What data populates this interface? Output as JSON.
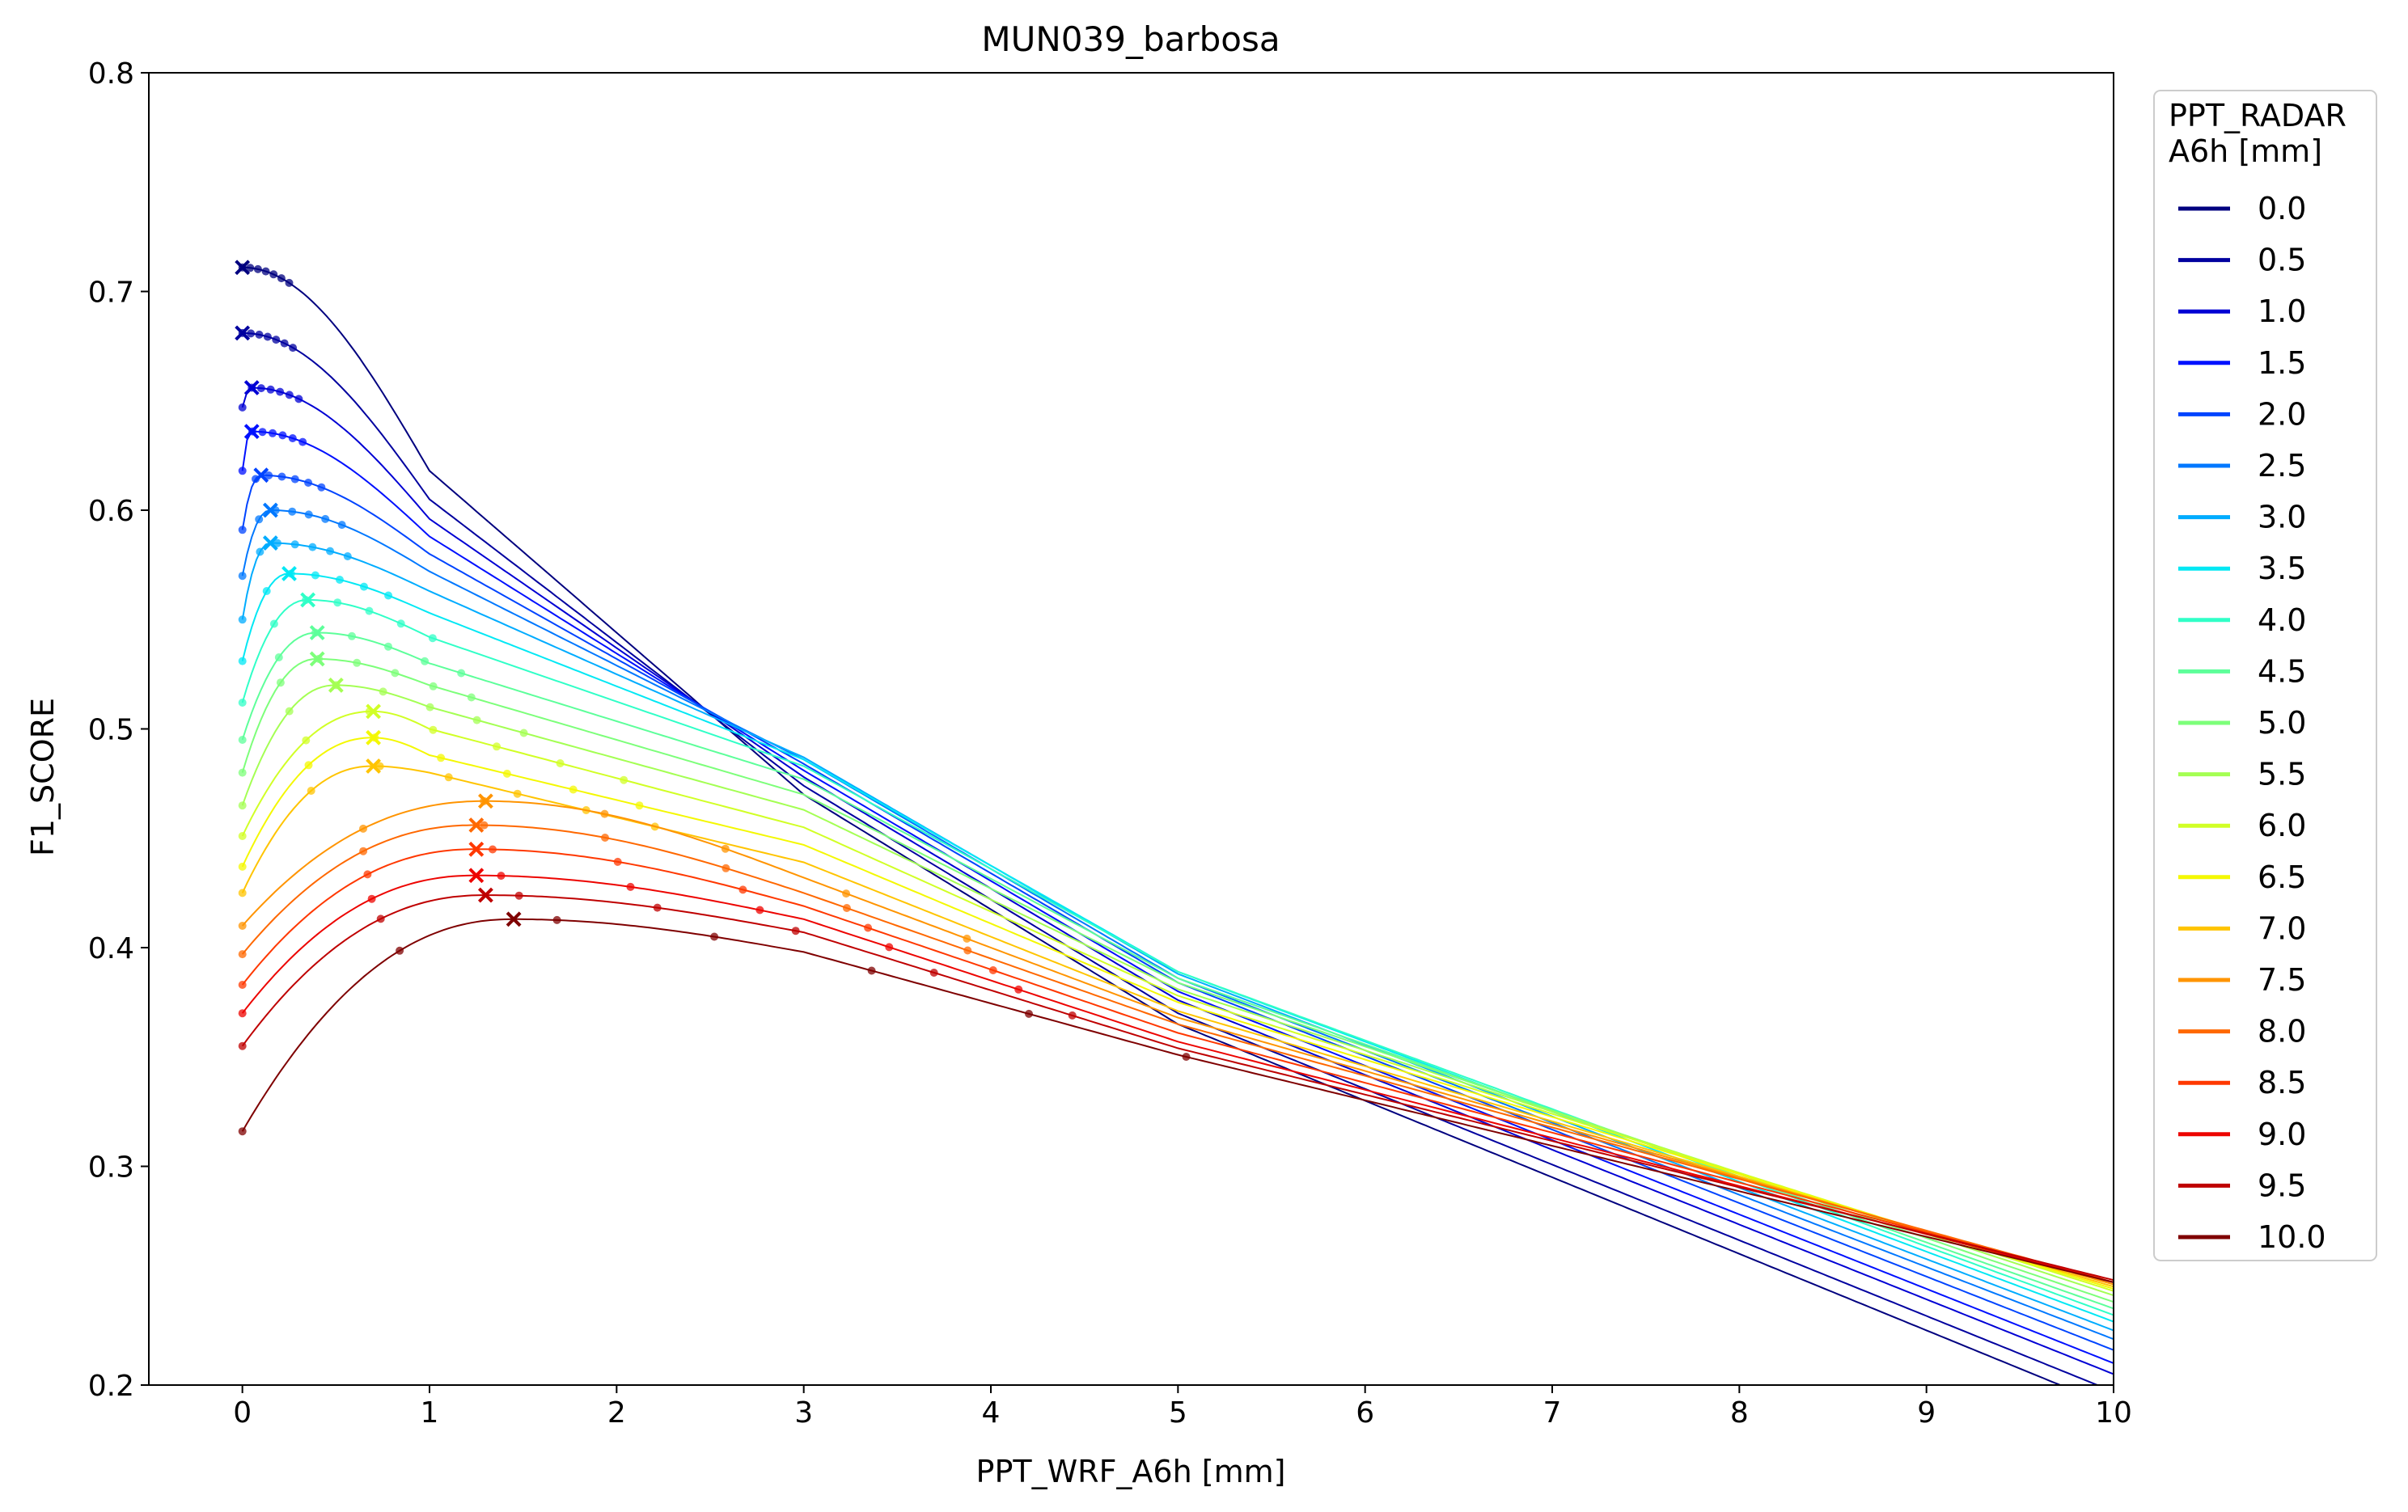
{
  "chart_data": {
    "type": "line",
    "title": "MUN039_barbosa",
    "xlabel": "PPT_WRF_A6h [mm]",
    "ylabel": "F1_SCORE",
    "xlim": [
      -0.5,
      10
    ],
    "ylim": [
      0.2,
      0.8
    ],
    "xticks": [
      "0",
      "1",
      "2",
      "3",
      "4",
      "5",
      "6",
      "7",
      "8",
      "9",
      "10"
    ],
    "yticks": [
      "0.2",
      "0.3",
      "0.4",
      "0.5",
      "0.6",
      "0.7",
      "0.8"
    ],
    "grid": false,
    "legend": {
      "title_line1": "PPT_RADAR",
      "title_line2": "A6h [mm]",
      "placement": "outside-right"
    },
    "series": [
      {
        "name": "0.0",
        "color": "#00007f",
        "peak_x": 0.0,
        "peak_y": 0.711,
        "start_y": 0.711,
        "y_at_1": 0.618,
        "y_at_3": 0.47,
        "y_at_5": 0.365,
        "y_at_10": 0.19
      },
      {
        "name": "0.5",
        "color": "#00009f",
        "peak_x": 0.0,
        "peak_y": 0.681,
        "start_y": 0.681,
        "y_at_1": 0.605,
        "y_at_3": 0.474,
        "y_at_5": 0.37,
        "y_at_10": 0.197
      },
      {
        "name": "1.0",
        "color": "#0000d4",
        "peak_x": 0.05,
        "peak_y": 0.656,
        "start_y": 0.647,
        "y_at_1": 0.596,
        "y_at_3": 0.478,
        "y_at_5": 0.376,
        "y_at_10": 0.205
      },
      {
        "name": "1.5",
        "color": "#0010ff",
        "peak_x": 0.05,
        "peak_y": 0.636,
        "start_y": 0.618,
        "y_at_1": 0.588,
        "y_at_3": 0.481,
        "y_at_5": 0.38,
        "y_at_10": 0.21
      },
      {
        "name": "2.0",
        "color": "#0044ff",
        "peak_x": 0.1,
        "peak_y": 0.616,
        "start_y": 0.591,
        "y_at_1": 0.58,
        "y_at_3": 0.484,
        "y_at_5": 0.384,
        "y_at_10": 0.216
      },
      {
        "name": "2.5",
        "color": "#0078ff",
        "peak_x": 0.15,
        "peak_y": 0.6,
        "start_y": 0.57,
        "y_at_1": 0.572,
        "y_at_3": 0.486,
        "y_at_5": 0.386,
        "y_at_10": 0.221
      },
      {
        "name": "3.0",
        "color": "#00acff",
        "peak_x": 0.15,
        "peak_y": 0.585,
        "start_y": 0.55,
        "y_at_1": 0.563,
        "y_at_3": 0.487,
        "y_at_5": 0.388,
        "y_at_10": 0.225
      },
      {
        "name": "3.5",
        "color": "#02e8f4",
        "peak_x": 0.25,
        "peak_y": 0.571,
        "start_y": 0.531,
        "y_at_1": 0.553,
        "y_at_3": 0.486,
        "y_at_5": 0.389,
        "y_at_10": 0.229
      },
      {
        "name": "4.0",
        "color": "#30ffc7",
        "peak_x": 0.35,
        "peak_y": 0.559,
        "start_y": 0.512,
        "y_at_1": 0.542,
        "y_at_3": 0.483,
        "y_at_5": 0.389,
        "y_at_10": 0.232
      },
      {
        "name": "4.5",
        "color": "#5dff9a",
        "peak_x": 0.4,
        "peak_y": 0.544,
        "start_y": 0.495,
        "y_at_1": 0.53,
        "y_at_3": 0.477,
        "y_at_5": 0.386,
        "y_at_10": 0.235
      },
      {
        "name": "5.0",
        "color": "#7dff7a",
        "peak_x": 0.4,
        "peak_y": 0.532,
        "start_y": 0.48,
        "y_at_1": 0.52,
        "y_at_3": 0.47,
        "y_at_5": 0.384,
        "y_at_10": 0.238
      },
      {
        "name": "5.5",
        "color": "#a4ff53",
        "peak_x": 0.5,
        "peak_y": 0.52,
        "start_y": 0.465,
        "y_at_1": 0.51,
        "y_at_3": 0.463,
        "y_at_5": 0.381,
        "y_at_10": 0.241
      },
      {
        "name": "6.0",
        "color": "#d1ff26",
        "peak_x": 0.7,
        "peak_y": 0.508,
        "start_y": 0.451,
        "y_at_1": 0.5,
        "y_at_3": 0.455,
        "y_at_5": 0.378,
        "y_at_10": 0.243
      },
      {
        "name": "6.5",
        "color": "#f4f802",
        "peak_x": 0.7,
        "peak_y": 0.496,
        "start_y": 0.437,
        "y_at_1": 0.488,
        "y_at_3": 0.447,
        "y_at_5": 0.375,
        "y_at_10": 0.244
      },
      {
        "name": "7.0",
        "color": "#ffc400",
        "peak_x": 0.7,
        "peak_y": 0.483,
        "start_y": 0.425,
        "y_at_1": 0.48,
        "y_at_3": 0.439,
        "y_at_5": 0.371,
        "y_at_10": 0.245
      },
      {
        "name": "7.5",
        "color": "#ff9400",
        "peak_x": 1.3,
        "peak_y": 0.467,
        "start_y": 0.41,
        "y_at_1": 0.466,
        "y_at_3": 0.432,
        "y_at_5": 0.368,
        "y_at_10": 0.246
      },
      {
        "name": "8.0",
        "color": "#ff6800",
        "peak_x": 1.25,
        "peak_y": 0.456,
        "start_y": 0.397,
        "y_at_1": 0.454,
        "y_at_3": 0.425,
        "y_at_5": 0.365,
        "y_at_10": 0.247
      },
      {
        "name": "8.5",
        "color": "#ff3800",
        "peak_x": 1.25,
        "peak_y": 0.445,
        "start_y": 0.383,
        "y_at_1": 0.443,
        "y_at_3": 0.419,
        "y_at_5": 0.361,
        "y_at_10": 0.247
      },
      {
        "name": "9.0",
        "color": "#ed0400",
        "peak_x": 1.25,
        "peak_y": 0.433,
        "start_y": 0.37,
        "y_at_1": 0.43,
        "y_at_3": 0.413,
        "y_at_5": 0.357,
        "y_at_10": 0.247
      },
      {
        "name": "9.5",
        "color": "#bf0000",
        "peak_x": 1.3,
        "peak_y": 0.424,
        "start_y": 0.355,
        "y_at_1": 0.419,
        "y_at_3": 0.407,
        "y_at_5": 0.354,
        "y_at_10": 0.248
      },
      {
        "name": "10.0",
        "color": "#7f0000",
        "peak_x": 1.45,
        "peak_y": 0.413,
        "start_y": 0.316,
        "y_at_1": 0.408,
        "y_at_3": 0.398,
        "y_at_5": 0.351,
        "y_at_10": 0.247
      }
    ]
  }
}
